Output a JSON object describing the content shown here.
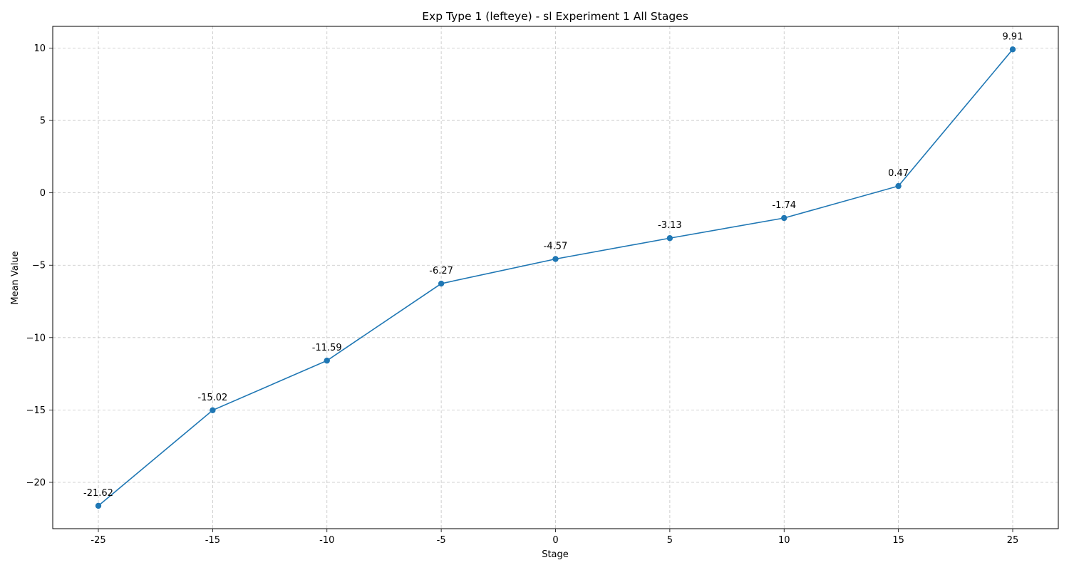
{
  "chart_data": {
    "type": "line",
    "title": "Exp Type 1 (lefteye) - sl Experiment 1 All Stages",
    "xlabel": "Stage",
    "ylabel": "Mean Value",
    "categories": [
      "-25",
      "-15",
      "-10",
      "-5",
      "0",
      "5",
      "10",
      "15",
      "25"
    ],
    "series": [
      {
        "values": [
          -21.62,
          -15.02,
          -11.59,
          -6.27,
          -4.57,
          -3.13,
          -1.74,
          0.47,
          9.91
        ],
        "labels": [
          "-21.62",
          "-15.02",
          "-11.59",
          "-6.27",
          "-4.57",
          "-3.13",
          "-1.74",
          "0.47",
          "9.91"
        ],
        "color": "#1f77b4",
        "marker": "circle"
      }
    ],
    "yticks": [
      10,
      5,
      0,
      -5,
      -10,
      -15,
      -20
    ],
    "ytick_labels": [
      "10",
      "5",
      "0",
      "−5",
      "−10",
      "−15",
      "−20"
    ],
    "ylim": [
      -23.2,
      11.5
    ],
    "grid": true,
    "grid_style": "dashed"
  }
}
